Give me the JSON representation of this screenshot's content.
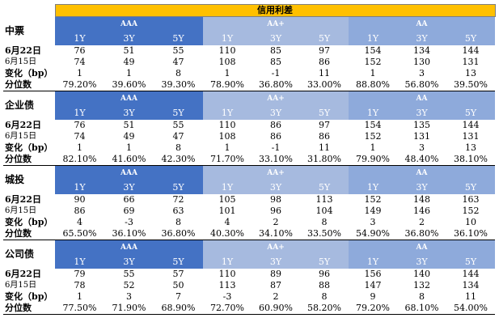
{
  "title": "信用利差",
  "ratings": [
    "AAA",
    "AA+",
    "AA"
  ],
  "tenors": [
    "1Y",
    "3Y",
    "5Y"
  ],
  "row_labels": {
    "current": "6月22日",
    "previous": "6月15日",
    "change": "变化（bp）",
    "percentile": "分位数"
  },
  "sections": [
    {
      "name": "中票",
      "current": [
        "76",
        "51",
        "55",
        "110",
        "85",
        "97",
        "154",
        "134",
        "144"
      ],
      "previous": [
        "74",
        "49",
        "47",
        "108",
        "85",
        "86",
        "152",
        "130",
        "131"
      ],
      "change": [
        "1",
        "1",
        "8",
        "1",
        "-1",
        "11",
        "1",
        "3",
        "13"
      ],
      "percentile": [
        "79.20%",
        "39.60%",
        "39.30%",
        "78.90%",
        "36.80%",
        "33.00%",
        "88.80%",
        "56.80%",
        "39.50%"
      ]
    },
    {
      "name": "企业债",
      "current": [
        "76",
        "51",
        "55",
        "110",
        "86",
        "97",
        "154",
        "135",
        "144"
      ],
      "previous": [
        "74",
        "49",
        "47",
        "108",
        "86",
        "86",
        "152",
        "131",
        "131"
      ],
      "change": [
        "1",
        "1",
        "8",
        "1",
        "-1",
        "11",
        "1",
        "3",
        "13"
      ],
      "percentile": [
        "82.10%",
        "41.60%",
        "42.30%",
        "71.70%",
        "33.10%",
        "31.80%",
        "79.90%",
        "48.40%",
        "38.10%"
      ]
    },
    {
      "name": "城投",
      "current": [
        "90",
        "66",
        "72",
        "105",
        "98",
        "113",
        "152",
        "148",
        "163"
      ],
      "previous": [
        "86",
        "69",
        "63",
        "101",
        "96",
        "104",
        "149",
        "146",
        "152"
      ],
      "change": [
        "4",
        "-3",
        "8",
        "4",
        "2",
        "8",
        "3",
        "2",
        "10"
      ],
      "percentile": [
        "65.50%",
        "36.10%",
        "36.80%",
        "40.30%",
        "34.10%",
        "33.50%",
        "54.90%",
        "36.80%",
        "36.10%"
      ]
    },
    {
      "name": "公司债",
      "current": [
        "79",
        "55",
        "57",
        "110",
        "89",
        "96",
        "156",
        "140",
        "144"
      ],
      "previous": [
        "78",
        "52",
        "50",
        "113",
        "87",
        "88",
        "147",
        "132",
        "134"
      ],
      "change": [
        "1",
        "3",
        "7",
        "-3",
        "2",
        "8",
        "9",
        "8",
        "11"
      ],
      "percentile": [
        "77.50%",
        "71.90%",
        "68.90%",
        "72.70%",
        "60.90%",
        "58.20%",
        "79.20%",
        "68.10%",
        "54.00%"
      ]
    }
  ]
}
